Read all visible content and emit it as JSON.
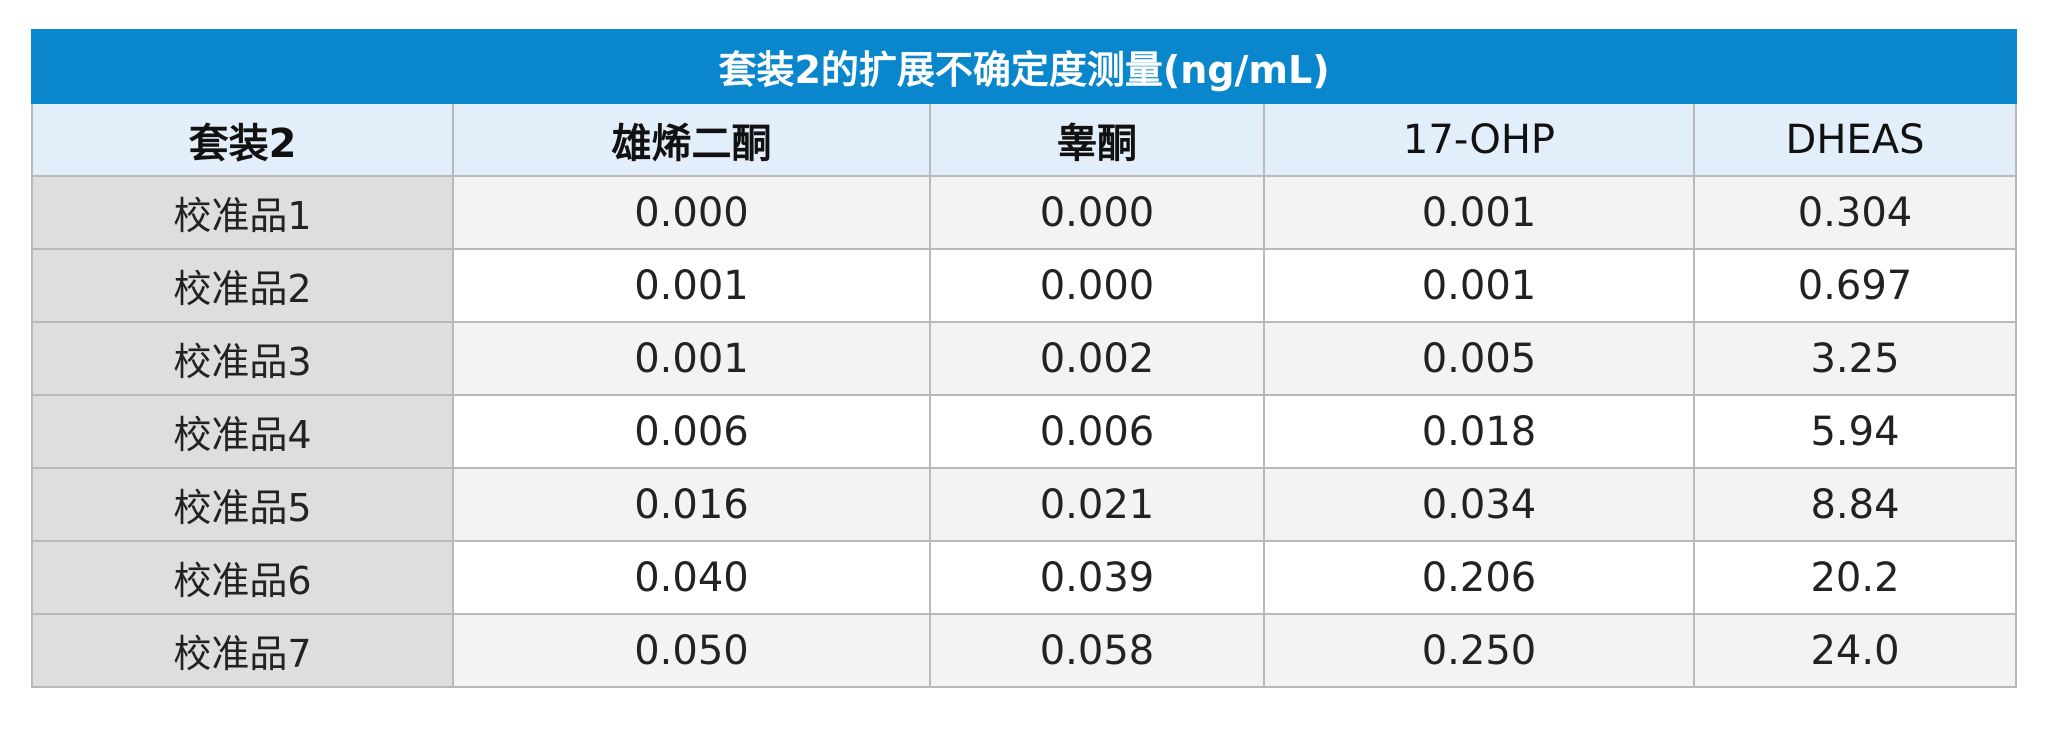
{
  "table": {
    "title": "套装2的扩展不确定度测量(ng/mL)",
    "headers": [
      "套装2",
      "雄烯二酮",
      "睾酮",
      "17-OHP",
      "DHEAS"
    ],
    "rows": [
      {
        "label": "校准品1",
        "values": [
          "0.000",
          "0.000",
          "0.001",
          "0.304"
        ]
      },
      {
        "label": "校准品2",
        "values": [
          "0.001",
          "0.000",
          "0.001",
          "0.697"
        ]
      },
      {
        "label": "校准品3",
        "values": [
          "0.001",
          "0.002",
          "0.005",
          "3.25"
        ]
      },
      {
        "label": "校准品4",
        "values": [
          "0.006",
          "0.006",
          "0.018",
          "5.94"
        ]
      },
      {
        "label": "校准品5",
        "values": [
          "0.016",
          "0.021",
          "0.034",
          "8.84"
        ]
      },
      {
        "label": "校准品6",
        "values": [
          "0.040",
          "0.039",
          "0.206",
          "20.2"
        ]
      },
      {
        "label": "校准品7",
        "values": [
          "0.050",
          "0.058",
          "0.250",
          "24.0"
        ]
      }
    ]
  },
  "colors": {
    "title_background": "#0a87cc",
    "header_background": "#e2eef9",
    "label_column_background": "#dedee0",
    "grid_lines": "#b9b9b9"
  }
}
